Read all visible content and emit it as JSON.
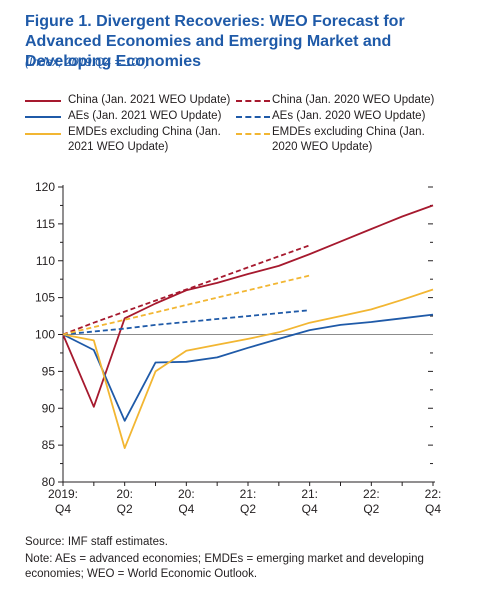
{
  "title": "Figure 1.  Divergent Recoveries: WEO Forecast for Advanced Economies and Emerging Market and Developing Economies",
  "subtitle": "(Index, 2019:Q4 = 100)",
  "source": "Source: IMF staff estimates.",
  "note": "Note: AEs = advanced economies; EMDEs = emerging market and developing economies; WEO = World Economic Outlook.",
  "colors": {
    "china": "#a6192e",
    "aes": "#1f5aa8",
    "emdes": "#f2b632",
    "baseline": "#8c8c8c"
  },
  "legend": [
    {
      "label": "China (Jan. 2021 WEO Update)",
      "style": "solid",
      "color": "#a6192e"
    },
    {
      "label": "AEs (Jan. 2021 WEO Update)",
      "style": "solid",
      "color": "#1f5aa8"
    },
    {
      "label": "EMDEs excluding China (Jan. 2021 WEO Update)",
      "style": "solid",
      "color": "#f2b632"
    },
    {
      "label": "China (Jan. 2020 WEO Update)",
      "style": "dashed",
      "color": "#a6192e"
    },
    {
      "label": "AEs (Jan. 2020 WEO Update)",
      "style": "dashed",
      "color": "#1f5aa8"
    },
    {
      "label": "EMDEs excluding China (Jan. 2020 WEO Update)",
      "style": "dashed",
      "color": "#f2b632"
    }
  ],
  "chart_data": {
    "type": "line",
    "ylim": [
      80,
      120
    ],
    "yticks": [
      80,
      85,
      90,
      95,
      100,
      105,
      110,
      115,
      120
    ],
    "x": [
      "2019:Q4",
      "2020:Q1",
      "2020:Q2",
      "2020:Q3",
      "2020:Q4",
      "2021:Q1",
      "2021:Q2",
      "2021:Q3",
      "2021:Q4",
      "2022:Q1",
      "2022:Q2",
      "2022:Q3",
      "2022:Q4"
    ],
    "xtick_labels": [
      {
        "index": 0,
        "line1": "2019:",
        "line2": "Q4"
      },
      {
        "index": 2,
        "line1": "20:",
        "line2": "Q2"
      },
      {
        "index": 4,
        "line1": "20:",
        "line2": "Q4"
      },
      {
        "index": 6,
        "line1": "21:",
        "line2": "Q2"
      },
      {
        "index": 8,
        "line1": "21:",
        "line2": "Q4"
      },
      {
        "index": 10,
        "line1": "22:",
        "line2": "Q2"
      },
      {
        "index": 12,
        "line1": "22:",
        "line2": "Q4"
      }
    ],
    "baseline": 100,
    "series": [
      {
        "name": "China (Jan. 2021 WEO Update)",
        "style": "solid",
        "color": "#a6192e",
        "values": [
          100,
          90.2,
          102.2,
          104.2,
          106.0,
          107.0,
          108.2,
          109.3,
          110.9,
          112.6,
          114.3,
          116.0,
          117.5
        ]
      },
      {
        "name": "AEs (Jan. 2021 WEO Update)",
        "style": "solid",
        "color": "#1f5aa8",
        "values": [
          100,
          97.9,
          88.3,
          96.2,
          96.3,
          96.9,
          98.2,
          99.4,
          100.6,
          101.3,
          101.7,
          102.2,
          102.7
        ]
      },
      {
        "name": "EMDEs excluding China (Jan. 2021 WEO Update)",
        "style": "solid",
        "color": "#f2b632",
        "values": [
          100,
          99.2,
          84.6,
          95.0,
          97.8,
          98.6,
          99.4,
          100.3,
          101.6,
          102.5,
          103.4,
          104.7,
          106.1
        ]
      },
      {
        "name": "China (Jan. 2020 WEO Update)",
        "style": "dashed",
        "color": "#a6192e",
        "values": [
          100,
          101.6,
          103.1,
          104.6,
          106.1,
          107.6,
          109.1,
          110.6,
          112.1,
          null,
          null,
          null,
          null
        ]
      },
      {
        "name": "AEs (Jan. 2020 WEO Update)",
        "style": "dashed",
        "color": "#1f5aa8",
        "values": [
          100,
          100.4,
          100.8,
          101.3,
          101.7,
          102.1,
          102.5,
          102.9,
          103.3,
          null,
          null,
          null,
          null
        ]
      },
      {
        "name": "EMDEs excluding China (Jan. 2020 WEO Update)",
        "style": "dashed",
        "color": "#f2b632",
        "values": [
          100,
          101.0,
          102.0,
          103.0,
          104.0,
          105.0,
          106.0,
          107.0,
          108.0,
          null,
          null,
          null,
          null
        ]
      }
    ]
  }
}
